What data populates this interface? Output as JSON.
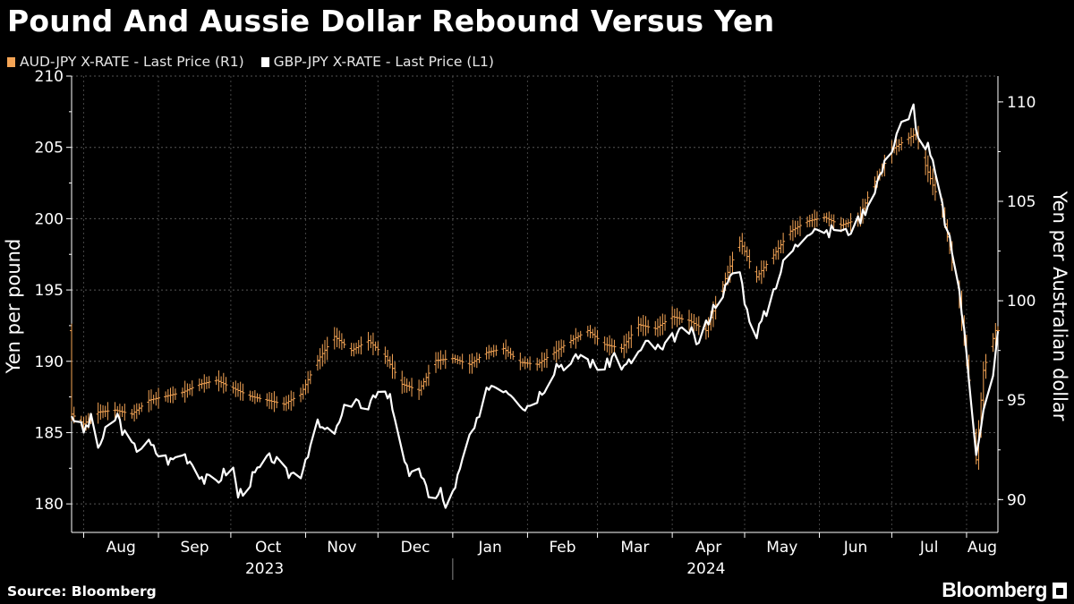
{
  "title": "Pound And Aussie Dollar Rebound Versus Yen",
  "source": "Source: Bloomberg",
  "logo": "Bloomberg",
  "colors": {
    "aud": "#f4a455",
    "gbp": "#ffffff",
    "grid": "#555555",
    "background": "#000000"
  },
  "chart_data": {
    "type": "line",
    "title": "Pound And Aussie Dollar Rebound Versus Yen",
    "x_start": "2023-07-27",
    "x_end": "2024-08-14",
    "months": [
      {
        "label": "Aug",
        "date": "2023-08-01"
      },
      {
        "label": "Sep",
        "date": "2023-09-01"
      },
      {
        "label": "Oct",
        "date": "2023-10-01"
      },
      {
        "label": "Nov",
        "date": "2023-11-01"
      },
      {
        "label": "Dec",
        "date": "2023-12-01"
      },
      {
        "label": "Jan",
        "date": "2024-01-01"
      },
      {
        "label": "Feb",
        "date": "2024-02-01"
      },
      {
        "label": "Mar",
        "date": "2024-03-01"
      },
      {
        "label": "Apr",
        "date": "2024-04-01"
      },
      {
        "label": "May",
        "date": "2024-05-01"
      },
      {
        "label": "Jun",
        "date": "2024-06-01"
      },
      {
        "label": "Jul",
        "date": "2024-07-01"
      },
      {
        "label": "Aug",
        "date": "2024-08-01"
      }
    ],
    "years": [
      {
        "label": "2023",
        "date": "2023-10-15"
      },
      {
        "label": "2024",
        "date": "2024-04-15"
      }
    ],
    "year_divider": "2024-01-01",
    "y_left": {
      "label": "Yen per pound",
      "min": 178,
      "max": 210,
      "ticks": [
        180,
        185,
        190,
        195,
        200,
        205,
        210
      ]
    },
    "y_right": {
      "label": "Yen per Australian dollar",
      "min": 88.35,
      "max": 111.3,
      "ticks": [
        90,
        95,
        100,
        105,
        110
      ]
    },
    "legend": [
      "AUD-JPY X-RATE - Last Price (R1)",
      "GBP-JPY X-RATE - Last Price (L1)"
    ],
    "series": [
      {
        "name": "AUD-JPY X-RATE - Last Price (R1)",
        "axis": "right",
        "style": "ohlc",
        "points": [
          [
            "2023-07-27",
            94.3
          ],
          [
            "2023-08-01",
            93.8
          ],
          [
            "2023-08-07",
            94.4
          ],
          [
            "2023-08-14",
            94.5
          ],
          [
            "2023-08-21",
            94.3
          ],
          [
            "2023-08-28",
            95.0
          ],
          [
            "2023-09-04",
            95.2
          ],
          [
            "2023-09-11",
            95.4
          ],
          [
            "2023-09-18",
            95.8
          ],
          [
            "2023-09-25",
            96.0
          ],
          [
            "2023-10-02",
            95.6
          ],
          [
            "2023-10-09",
            95.2
          ],
          [
            "2023-10-16",
            95.0
          ],
          [
            "2023-10-23",
            94.8
          ],
          [
            "2023-10-30",
            95.3
          ],
          [
            "2023-11-06",
            97.0
          ],
          [
            "2023-11-13",
            98.2
          ],
          [
            "2023-11-20",
            97.5
          ],
          [
            "2023-11-27",
            98.0
          ],
          [
            "2023-12-04",
            97.2
          ],
          [
            "2023-12-11",
            95.8
          ],
          [
            "2023-12-18",
            95.5
          ],
          [
            "2023-12-25",
            97.0
          ],
          [
            "2024-01-01",
            97.1
          ],
          [
            "2024-01-08",
            96.8
          ],
          [
            "2024-01-15",
            97.4
          ],
          [
            "2024-01-22",
            97.6
          ],
          [
            "2024-01-29",
            96.9
          ],
          [
            "2024-02-05",
            96.8
          ],
          [
            "2024-02-12",
            97.4
          ],
          [
            "2024-02-19",
            98.0
          ],
          [
            "2024-02-26",
            98.5
          ],
          [
            "2024-03-04",
            97.8
          ],
          [
            "2024-03-11",
            97.6
          ],
          [
            "2024-03-18",
            98.8
          ],
          [
            "2024-03-25",
            98.6
          ],
          [
            "2024-04-01",
            99.2
          ],
          [
            "2024-04-08",
            99.0
          ],
          [
            "2024-04-15",
            98.5
          ],
          [
            "2024-04-22",
            100.8
          ],
          [
            "2024-04-29",
            103.0
          ],
          [
            "2024-05-06",
            101.2
          ],
          [
            "2024-05-13",
            102.3
          ],
          [
            "2024-05-20",
            103.5
          ],
          [
            "2024-05-27",
            104.0
          ],
          [
            "2024-06-03",
            104.2
          ],
          [
            "2024-06-10",
            103.8
          ],
          [
            "2024-06-17",
            104.1
          ],
          [
            "2024-06-24",
            106.0
          ],
          [
            "2024-07-01",
            107.6
          ],
          [
            "2024-07-08",
            108.2
          ],
          [
            "2024-07-11",
            108.4
          ],
          [
            "2024-07-15",
            106.8
          ],
          [
            "2024-07-22",
            104.5
          ],
          [
            "2024-07-29",
            100.0
          ],
          [
            "2024-08-02",
            96.0
          ],
          [
            "2024-08-05",
            92.0
          ],
          [
            "2024-08-08",
            96.5
          ],
          [
            "2024-08-13",
            98.5
          ]
        ]
      },
      {
        "name": "GBP-JPY X-RATE - Last Price (L1)",
        "axis": "left",
        "style": "line",
        "points": [
          [
            "2023-07-27",
            186.3
          ],
          [
            "2023-08-01",
            185.1
          ],
          [
            "2023-08-04",
            185.9
          ],
          [
            "2023-08-07",
            184.0
          ],
          [
            "2023-08-11",
            185.3
          ],
          [
            "2023-08-15",
            186.2
          ],
          [
            "2023-08-18",
            184.8
          ],
          [
            "2023-08-22",
            183.9
          ],
          [
            "2023-08-28",
            184.2
          ],
          [
            "2023-09-01",
            183.5
          ],
          [
            "2023-09-06",
            183.0
          ],
          [
            "2023-09-11",
            183.6
          ],
          [
            "2023-09-15",
            182.9
          ],
          [
            "2023-09-20",
            181.7
          ],
          [
            "2023-09-25",
            181.6
          ],
          [
            "2023-09-29",
            182.3
          ],
          [
            "2023-10-02",
            182.4
          ],
          [
            "2023-10-04",
            180.6
          ],
          [
            "2023-10-09",
            181.6
          ],
          [
            "2023-10-13",
            182.5
          ],
          [
            "2023-10-18",
            183.3
          ],
          [
            "2023-10-24",
            182.1
          ],
          [
            "2023-10-30",
            182.2
          ],
          [
            "2023-11-02",
            183.7
          ],
          [
            "2023-11-06",
            185.5
          ],
          [
            "2023-11-10",
            185.0
          ],
          [
            "2023-11-14",
            185.2
          ],
          [
            "2023-11-18",
            187.0
          ],
          [
            "2023-11-22",
            187.4
          ],
          [
            "2023-11-26",
            186.0
          ],
          [
            "2023-12-01",
            188.2
          ],
          [
            "2023-12-06",
            187.5
          ],
          [
            "2023-12-11",
            184.0
          ],
          [
            "2023-12-14",
            181.6
          ],
          [
            "2023-12-18",
            182.7
          ],
          [
            "2023-12-22",
            180.3
          ],
          [
            "2023-12-27",
            181.0
          ],
          [
            "2023-12-29",
            179.5
          ],
          [
            "2024-01-04",
            182.3
          ],
          [
            "2024-01-08",
            184.7
          ],
          [
            "2024-01-12",
            185.9
          ],
          [
            "2024-01-16",
            188.4
          ],
          [
            "2024-01-22",
            188.2
          ],
          [
            "2024-01-26",
            187.8
          ],
          [
            "2024-01-31",
            186.8
          ],
          [
            "2024-02-05",
            187.5
          ],
          [
            "2024-02-09",
            188.5
          ],
          [
            "2024-02-13",
            189.8
          ],
          [
            "2024-02-19",
            189.8
          ],
          [
            "2024-02-23",
            190.5
          ],
          [
            "2024-02-28",
            189.8
          ],
          [
            "2024-03-04",
            189.5
          ],
          [
            "2024-03-08",
            190.5
          ],
          [
            "2024-03-12",
            189.5
          ],
          [
            "2024-03-18",
            190.6
          ],
          [
            "2024-03-22",
            191.3
          ],
          [
            "2024-03-28",
            190.7
          ],
          [
            "2024-04-02",
            191.8
          ],
          [
            "2024-04-08",
            192.2
          ],
          [
            "2024-04-12",
            191.2
          ],
          [
            "2024-04-16",
            193.0
          ],
          [
            "2024-04-20",
            194.5
          ],
          [
            "2024-04-24",
            195.3
          ],
          [
            "2024-04-28",
            197.2
          ],
          [
            "2024-05-02",
            193.5
          ],
          [
            "2024-05-06",
            192.0
          ],
          [
            "2024-05-10",
            193.5
          ],
          [
            "2024-05-14",
            195.5
          ],
          [
            "2024-05-18",
            197.2
          ],
          [
            "2024-05-22",
            198.0
          ],
          [
            "2024-05-27",
            199.2
          ],
          [
            "2024-05-31",
            199.5
          ],
          [
            "2024-06-04",
            198.8
          ],
          [
            "2024-06-08",
            199.6
          ],
          [
            "2024-06-12",
            199.0
          ],
          [
            "2024-06-17",
            199.8
          ],
          [
            "2024-06-21",
            201.0
          ],
          [
            "2024-06-26",
            203.0
          ],
          [
            "2024-06-30",
            204.5
          ],
          [
            "2024-07-04",
            206.5
          ],
          [
            "2024-07-08",
            206.8
          ],
          [
            "2024-07-10",
            207.9
          ],
          [
            "2024-07-12",
            205.5
          ],
          [
            "2024-07-16",
            205.0
          ],
          [
            "2024-07-20",
            202.5
          ],
          [
            "2024-07-24",
            199.0
          ],
          [
            "2024-07-28",
            196.5
          ],
          [
            "2024-08-01",
            190.5
          ],
          [
            "2024-08-05",
            183.8
          ],
          [
            "2024-08-08",
            186.5
          ],
          [
            "2024-08-12",
            188.8
          ],
          [
            "2024-08-14",
            192.0
          ]
        ]
      }
    ]
  }
}
